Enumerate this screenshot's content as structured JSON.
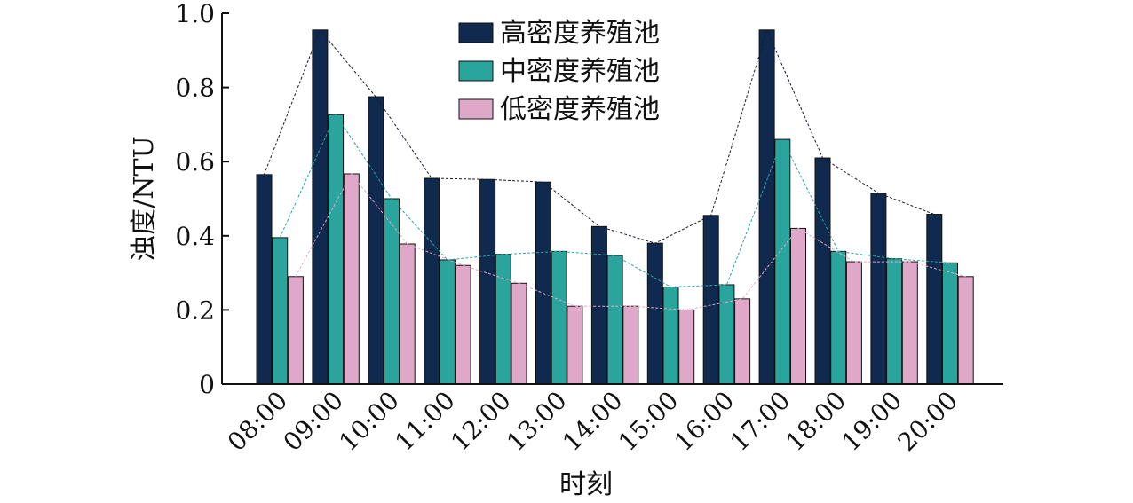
{
  "chart_data": {
    "type": "bar",
    "xlabel": "时刻",
    "ylabel": "浊度/NTU",
    "ylim": [
      0,
      1.0
    ],
    "yticks": [
      "0",
      "0.2",
      "0.4",
      "0.6",
      "0.8",
      "1.0"
    ],
    "ytick_values": [
      0,
      0.2,
      0.4,
      0.6,
      0.8,
      1.0
    ],
    "categories": [
      "08:00",
      "09:00",
      "10:00",
      "11:00",
      "12:00",
      "13:00",
      "14:00",
      "15:00",
      "16:00",
      "17:00",
      "18:00",
      "19:00",
      "20:00"
    ],
    "legend_position": "top-center",
    "grid": false,
    "series": [
      {
        "name": "高密度养殖池",
        "color": "#0f2a4e",
        "line_color": "#1a1a2e",
        "values": [
          0.565,
          0.955,
          0.775,
          0.555,
          0.552,
          0.545,
          0.425,
          0.38,
          0.455,
          0.955,
          0.61,
          0.515,
          0.458
        ]
      },
      {
        "name": "中密度养殖池",
        "color": "#2aa59e",
        "line_color": "#2aa59e",
        "values": [
          0.395,
          0.727,
          0.5,
          0.335,
          0.35,
          0.358,
          0.347,
          0.262,
          0.268,
          0.66,
          0.358,
          0.338,
          0.327
        ]
      },
      {
        "name": "低密度养殖池",
        "color": "#e0a8c8",
        "line_color": "#e0a8c8",
        "values": [
          0.29,
          0.567,
          0.378,
          0.32,
          0.272,
          0.21,
          0.21,
          0.2,
          0.23,
          0.42,
          0.33,
          0.33,
          0.29
        ]
      }
    ]
  }
}
